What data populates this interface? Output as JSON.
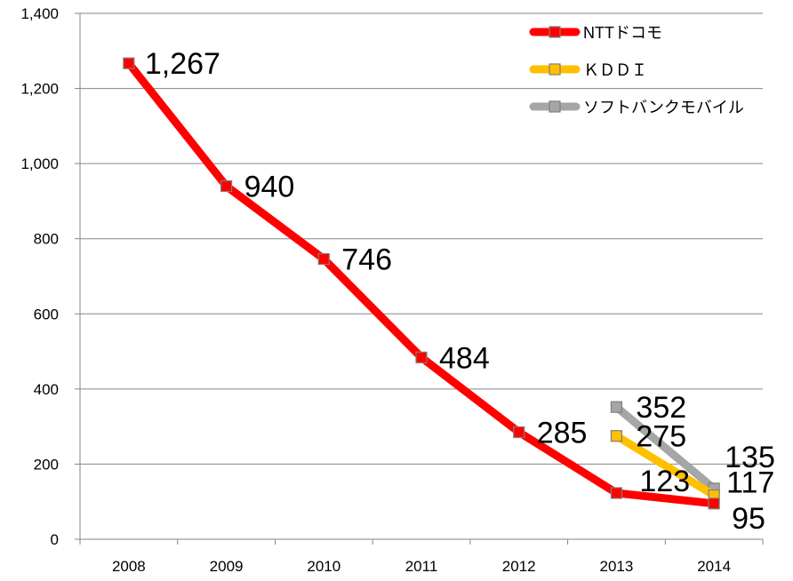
{
  "chart_data": {
    "type": "line",
    "categories": [
      "2008",
      "2009",
      "2010",
      "2011",
      "2012",
      "2013",
      "2014"
    ],
    "series": [
      {
        "name": "NTTドコモ",
        "color": "#ff0000",
        "values": [
          1267,
          940,
          746,
          484,
          285,
          123,
          95
        ],
        "labels": [
          "1,267",
          "940",
          "746",
          "484",
          "285",
          "123",
          "95"
        ]
      },
      {
        "name": "ＫＤＤＩ",
        "color": "#ffc000",
        "values": [
          null,
          null,
          null,
          null,
          null,
          275,
          117
        ],
        "labels": [
          null,
          null,
          null,
          null,
          null,
          "275",
          "117"
        ]
      },
      {
        "name": "ソフトバンクモバイル",
        "color": "#a6a6a6",
        "values": [
          null,
          null,
          null,
          null,
          null,
          352,
          135
        ],
        "labels": [
          null,
          null,
          null,
          null,
          null,
          "352",
          "135"
        ]
      }
    ],
    "ylim": [
      0,
      1400
    ],
    "yticks": [
      0,
      200,
      400,
      600,
      800,
      1000,
      1200,
      1400
    ],
    "ytick_labels": [
      "0",
      "200",
      "400",
      "600",
      "800",
      "1,000",
      "1,200",
      "1,400"
    ],
    "grid": true,
    "legend": "top-right",
    "title": "",
    "xlabel": "",
    "ylabel": ""
  }
}
